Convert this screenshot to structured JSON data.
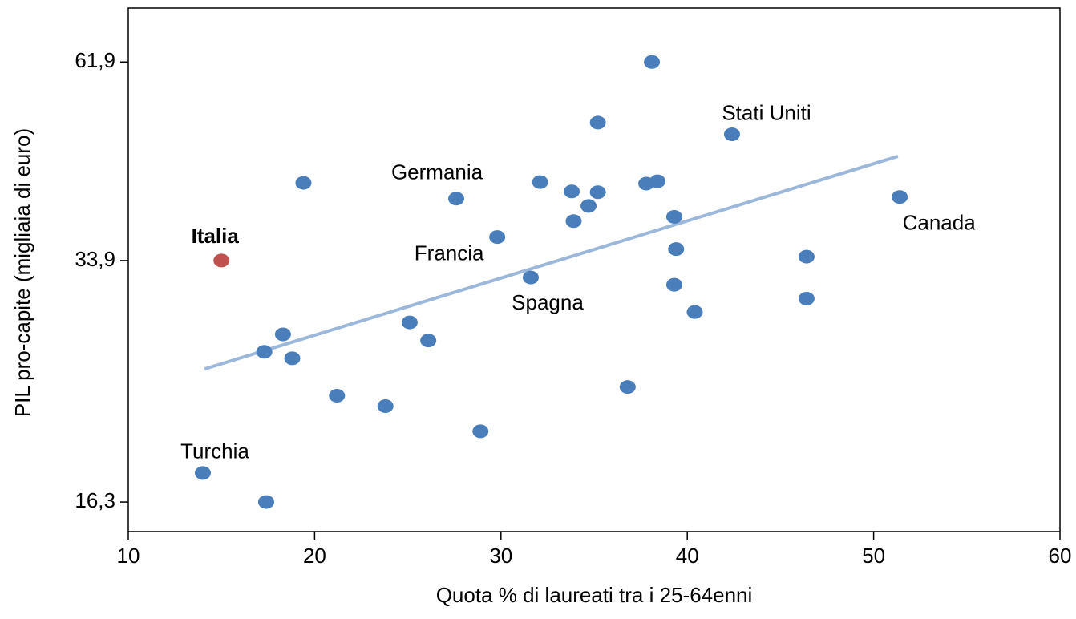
{
  "chart_data": {
    "type": "scatter",
    "xlabel": "Quota % di laureati tra i 25-64enni",
    "ylabel": "PIL pro-capite (migliaia di euro)",
    "xlim": [
      10,
      60
    ],
    "xticks": [
      10,
      20,
      30,
      40,
      50,
      60
    ],
    "ylim": [
      14.9,
      72.9
    ],
    "ylog": true,
    "yticks": [
      {
        "value": 16.3,
        "label": "16,3"
      },
      {
        "value": 33.9,
        "label": "33,9"
      },
      {
        "value": 61.9,
        "label": "61,9"
      }
    ],
    "series": [
      {
        "color": "#4a7ebb",
        "x": [
          38.1,
          35.2,
          42.4,
          19.4,
          32.1,
          33.8,
          35.2,
          37.8,
          38.4,
          27.6,
          51.4,
          34.7,
          33.9,
          39.3,
          29.8,
          39.4,
          46.4,
          31.6,
          39.3,
          46.4,
          40.4,
          25.1,
          18.3,
          26.1,
          17.3,
          18.8,
          36.8,
          21.2,
          23.8,
          28.9,
          14.0,
          17.4
        ],
        "values": [
          61.9,
          51.5,
          49.7,
          42.9,
          43.0,
          41.8,
          41.7,
          42.8,
          43.1,
          40.9,
          41.1,
          40.0,
          38.2,
          38.7,
          36.4,
          35.1,
          34.3,
          32.2,
          31.5,
          30.2,
          29.0,
          28.1,
          27.1,
          26.6,
          25.7,
          25.2,
          23.1,
          22.5,
          21.8,
          20.2,
          17.8,
          16.3
        ],
        "labels": [
          null,
          null,
          "Stati Uniti",
          null,
          null,
          null,
          null,
          null,
          null,
          "Germania",
          "Canada",
          null,
          null,
          null,
          "Francia",
          null,
          null,
          "Spagna",
          null,
          null,
          null,
          null,
          null,
          null,
          null,
          null,
          null,
          null,
          null,
          null,
          "Turchia",
          null
        ]
      },
      {
        "color": "#c0504d",
        "bold": true,
        "x": [
          15.0
        ],
        "values": [
          33.9
        ],
        "labels": [
          "Italia"
        ]
      }
    ],
    "trendline": {
      "color": "#9bb7d9",
      "x": [
        14.1,
        51.3
      ],
      "values": [
        24.4,
        46.5
      ]
    }
  }
}
